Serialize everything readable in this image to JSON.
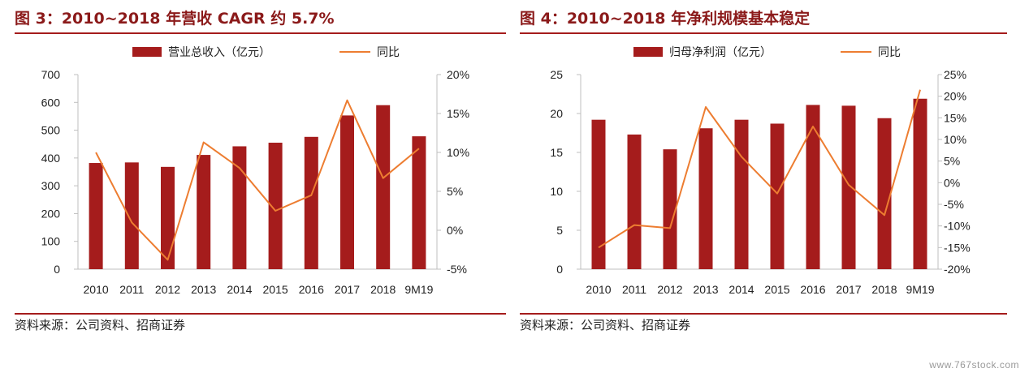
{
  "panels": [
    {
      "title": "图 3：2010~2018 年营收 CAGR 约 5.7%",
      "source": "资料来源：公司资料、招商证券"
    },
    {
      "title": "图 4：2010~2018 年净利规模基本稳定",
      "source": "资料来源：公司资料、招商证券"
    }
  ],
  "watermark": "www.767stock.com",
  "colors": {
    "bar": "#a51c1c",
    "line": "#ed7d31",
    "title": "#8b1a1a",
    "axis": "#bfbfbf",
    "text": "#222222"
  },
  "chart_data": [
    {
      "type": "bar",
      "categories": [
        "2010",
        "2011",
        "2012",
        "2013",
        "2014",
        "2015",
        "2016",
        "2017",
        "2018",
        "9M19"
      ],
      "series": [
        {
          "name": "营业总收入（亿元）",
          "type": "bar",
          "axis": "left",
          "values": [
            382,
            384,
            368,
            411,
            442,
            455,
            476,
            553,
            590,
            478
          ]
        },
        {
          "name": "同比",
          "type": "line",
          "axis": "right",
          "values": [
            10.0,
            1.0,
            -3.8,
            11.3,
            8.0,
            2.5,
            4.5,
            16.7,
            6.7,
            10.5
          ]
        }
      ],
      "ylim_left": [
        0,
        700
      ],
      "ylim_right": [
        -5,
        20
      ],
      "left_ticks": [
        "0",
        "100",
        "200",
        "300",
        "400",
        "500",
        "600",
        "700"
      ],
      "right_ticks": [
        "-5%",
        "0%",
        "5%",
        "10%",
        "15%",
        "20%"
      ],
      "legend_position": "top-center"
    },
    {
      "type": "bar",
      "categories": [
        "2010",
        "2011",
        "2012",
        "2013",
        "2014",
        "2015",
        "2016",
        "2017",
        "2018",
        "9M19"
      ],
      "series": [
        {
          "name": "归母净利润（亿元）",
          "type": "bar",
          "axis": "left",
          "values": [
            19.2,
            17.3,
            15.4,
            18.1,
            19.2,
            18.7,
            21.1,
            21.0,
            19.4,
            21.9
          ]
        },
        {
          "name": "同比",
          "type": "line",
          "axis": "right",
          "values": [
            -15.0,
            -9.8,
            -10.5,
            17.5,
            6.0,
            -2.5,
            13.0,
            -0.5,
            -7.5,
            21.5
          ]
        }
      ],
      "ylim_left": [
        0,
        25
      ],
      "ylim_right": [
        -20,
        25
      ],
      "left_ticks": [
        "0",
        "5",
        "10",
        "15",
        "20",
        "25"
      ],
      "right_ticks": [
        "-20%",
        "-15%",
        "-10%",
        "-5%",
        "0%",
        "5%",
        "10%",
        "15%",
        "20%",
        "25%"
      ],
      "legend_position": "top-center"
    }
  ]
}
